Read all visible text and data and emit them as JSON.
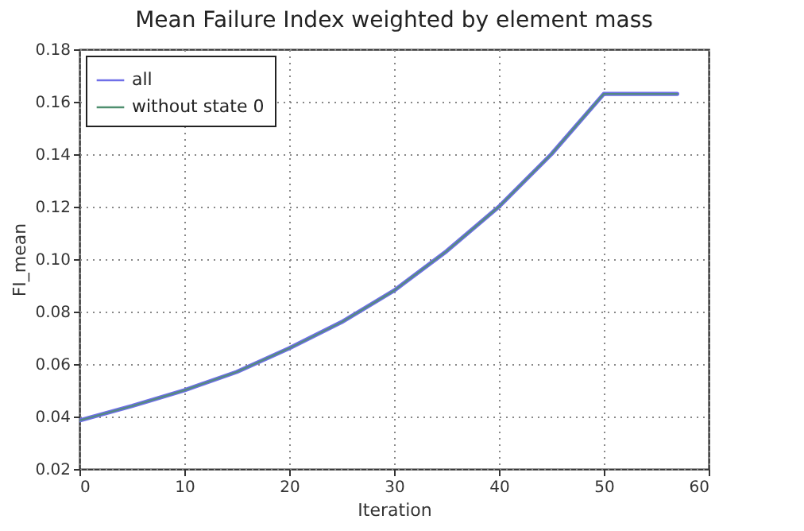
{
  "chart_data": {
    "type": "line",
    "title": "Mean Failure Index weighted by element mass",
    "xlabel": "Iteration",
    "ylabel": "FI_mean",
    "x": [
      0,
      5,
      10,
      15,
      20,
      25,
      30,
      35,
      40,
      45,
      50,
      57
    ],
    "series": [
      {
        "name": "all",
        "color": "#6f6fe8",
        "values": [
          0.0385,
          0.044,
          0.05,
          0.057,
          0.066,
          0.076,
          0.088,
          0.103,
          0.12,
          0.14,
          0.163,
          0.163
        ]
      },
      {
        "name": "without state 0",
        "color": "#4f8f6f",
        "values": [
          0.0385,
          0.044,
          0.05,
          0.057,
          0.066,
          0.076,
          0.088,
          0.103,
          0.12,
          0.14,
          0.163,
          0.163
        ]
      }
    ],
    "xlim": [
      0,
      60
    ],
    "xticks": [
      0,
      10,
      20,
      30,
      40,
      50,
      60
    ],
    "ylim": [
      0.02,
      0.18
    ],
    "yticks": [
      0.02,
      0.04,
      0.06,
      0.08,
      {
        "value": 0.1,
        "label": "0.10"
      },
      0.12,
      0.14,
      0.16,
      0.18
    ],
    "grid": true,
    "legend": "top left",
    "marker": "none",
    "line_style": "solid"
  }
}
